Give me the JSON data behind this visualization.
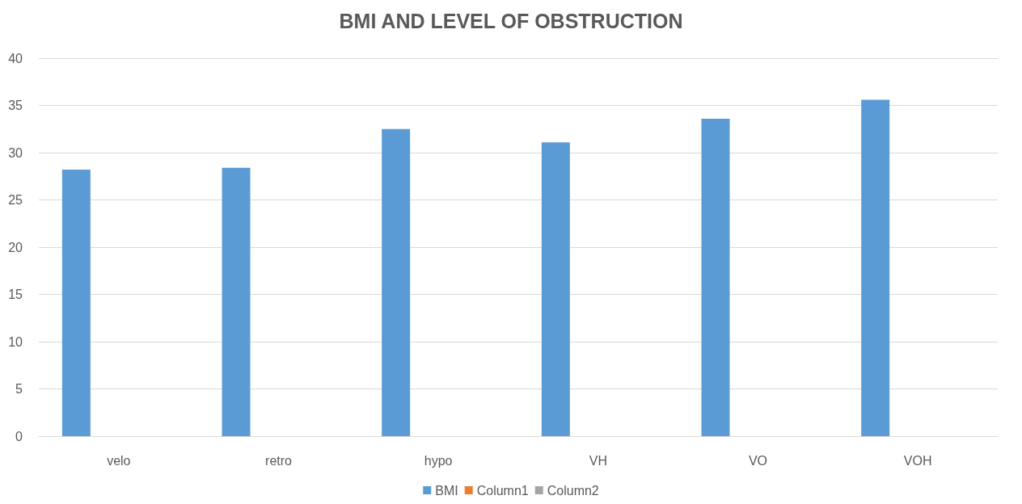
{
  "chart_data": {
    "type": "bar",
    "title": "BMI AND LEVEL OF OBSTRUCTION",
    "categories": [
      "velo",
      "retro",
      "hypo",
      "VH",
      "VO",
      "VOH"
    ],
    "series": [
      {
        "name": "BMI",
        "color": "#5b9bd5",
        "values": [
          28.2,
          28.4,
          32.5,
          31.1,
          33.6,
          35.6
        ]
      },
      {
        "name": "Column1",
        "color": "#ed7d31",
        "values": [
          null,
          null,
          null,
          null,
          null,
          null
        ]
      },
      {
        "name": "Column2",
        "color": "#a5a5a5",
        "values": [
          null,
          null,
          null,
          null,
          null,
          null
        ]
      }
    ],
    "ylim": [
      0,
      40
    ],
    "yticks": [
      0,
      5,
      10,
      15,
      20,
      25,
      30,
      35,
      40
    ],
    "grid": "y",
    "legend": "bottom"
  }
}
